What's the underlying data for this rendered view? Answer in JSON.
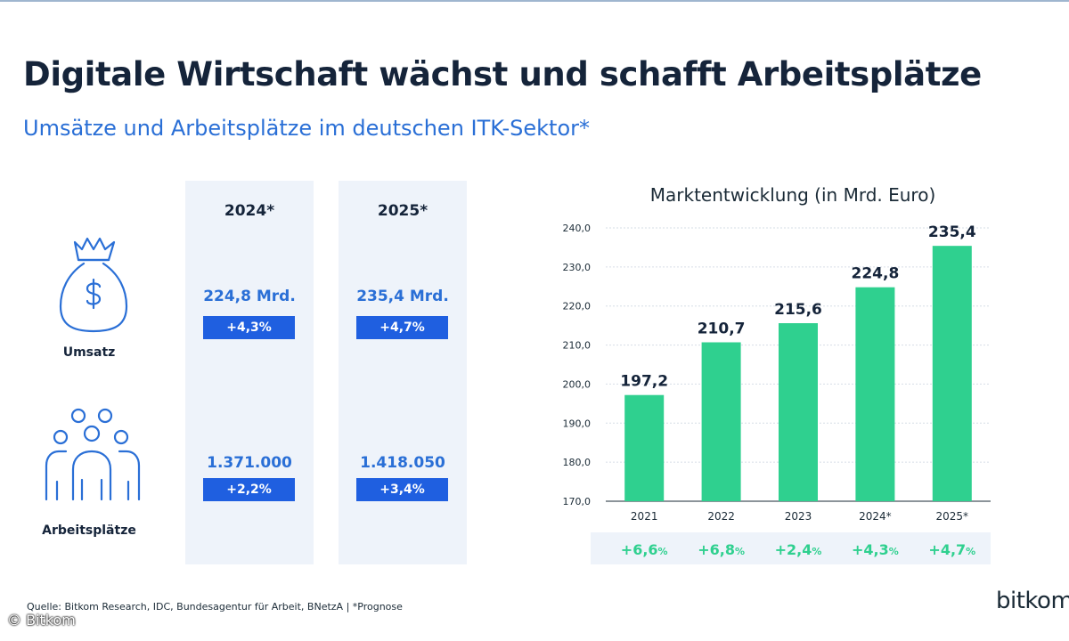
{
  "header": {
    "title": "Digitale Wirtschaft wächst und schafft Arbeitsplätze",
    "subtitle": "Umsätze und Arbeitsplätze im deutschen ITK-Sektor*"
  },
  "table": {
    "columns": [
      {
        "year": "2024*",
        "revenue": "224,8 Mrd.",
        "revenue_growth": "+4,3%",
        "jobs": "1.371.000",
        "jobs_growth": "+2,2%"
      },
      {
        "year": "2025*",
        "revenue": "235,4 Mrd.",
        "revenue_growth": "+4,7%",
        "jobs": "1.418.050",
        "jobs_growth": "+3,4%"
      }
    ],
    "rows": {
      "revenue_label": "Umsatz",
      "jobs_label": "Arbeitsplätze"
    }
  },
  "chart_data": {
    "type": "bar",
    "title": "Marktentwicklung (in Mrd. Euro)",
    "categories": [
      "2021",
      "2022",
      "2023",
      "2024*",
      "2025*"
    ],
    "values": [
      197.2,
      210.7,
      215.6,
      224.8,
      235.4
    ],
    "value_labels": [
      "197,2",
      "210,7",
      "215,6",
      "224,8",
      "235,4"
    ],
    "growth_labels": [
      "+6,6",
      "+6,8",
      "+2,4",
      "+4,3",
      "+4,7"
    ],
    "growth_unit": "%",
    "ylim": [
      170,
      240
    ],
    "yticks": [
      "170,0",
      "180,0",
      "190,0",
      "200,0",
      "210,0",
      "220,0",
      "230,0",
      "240,0"
    ],
    "xlabel": "",
    "ylabel": "",
    "grid": true,
    "bar_color": "#2fd08f"
  },
  "footer": {
    "source": "Quelle: Bitkom Research, IDC, Bundesagentur für Arbeit, BNetzA | *Prognose",
    "copyright": "© Bitkom",
    "brand": "bitkom"
  }
}
